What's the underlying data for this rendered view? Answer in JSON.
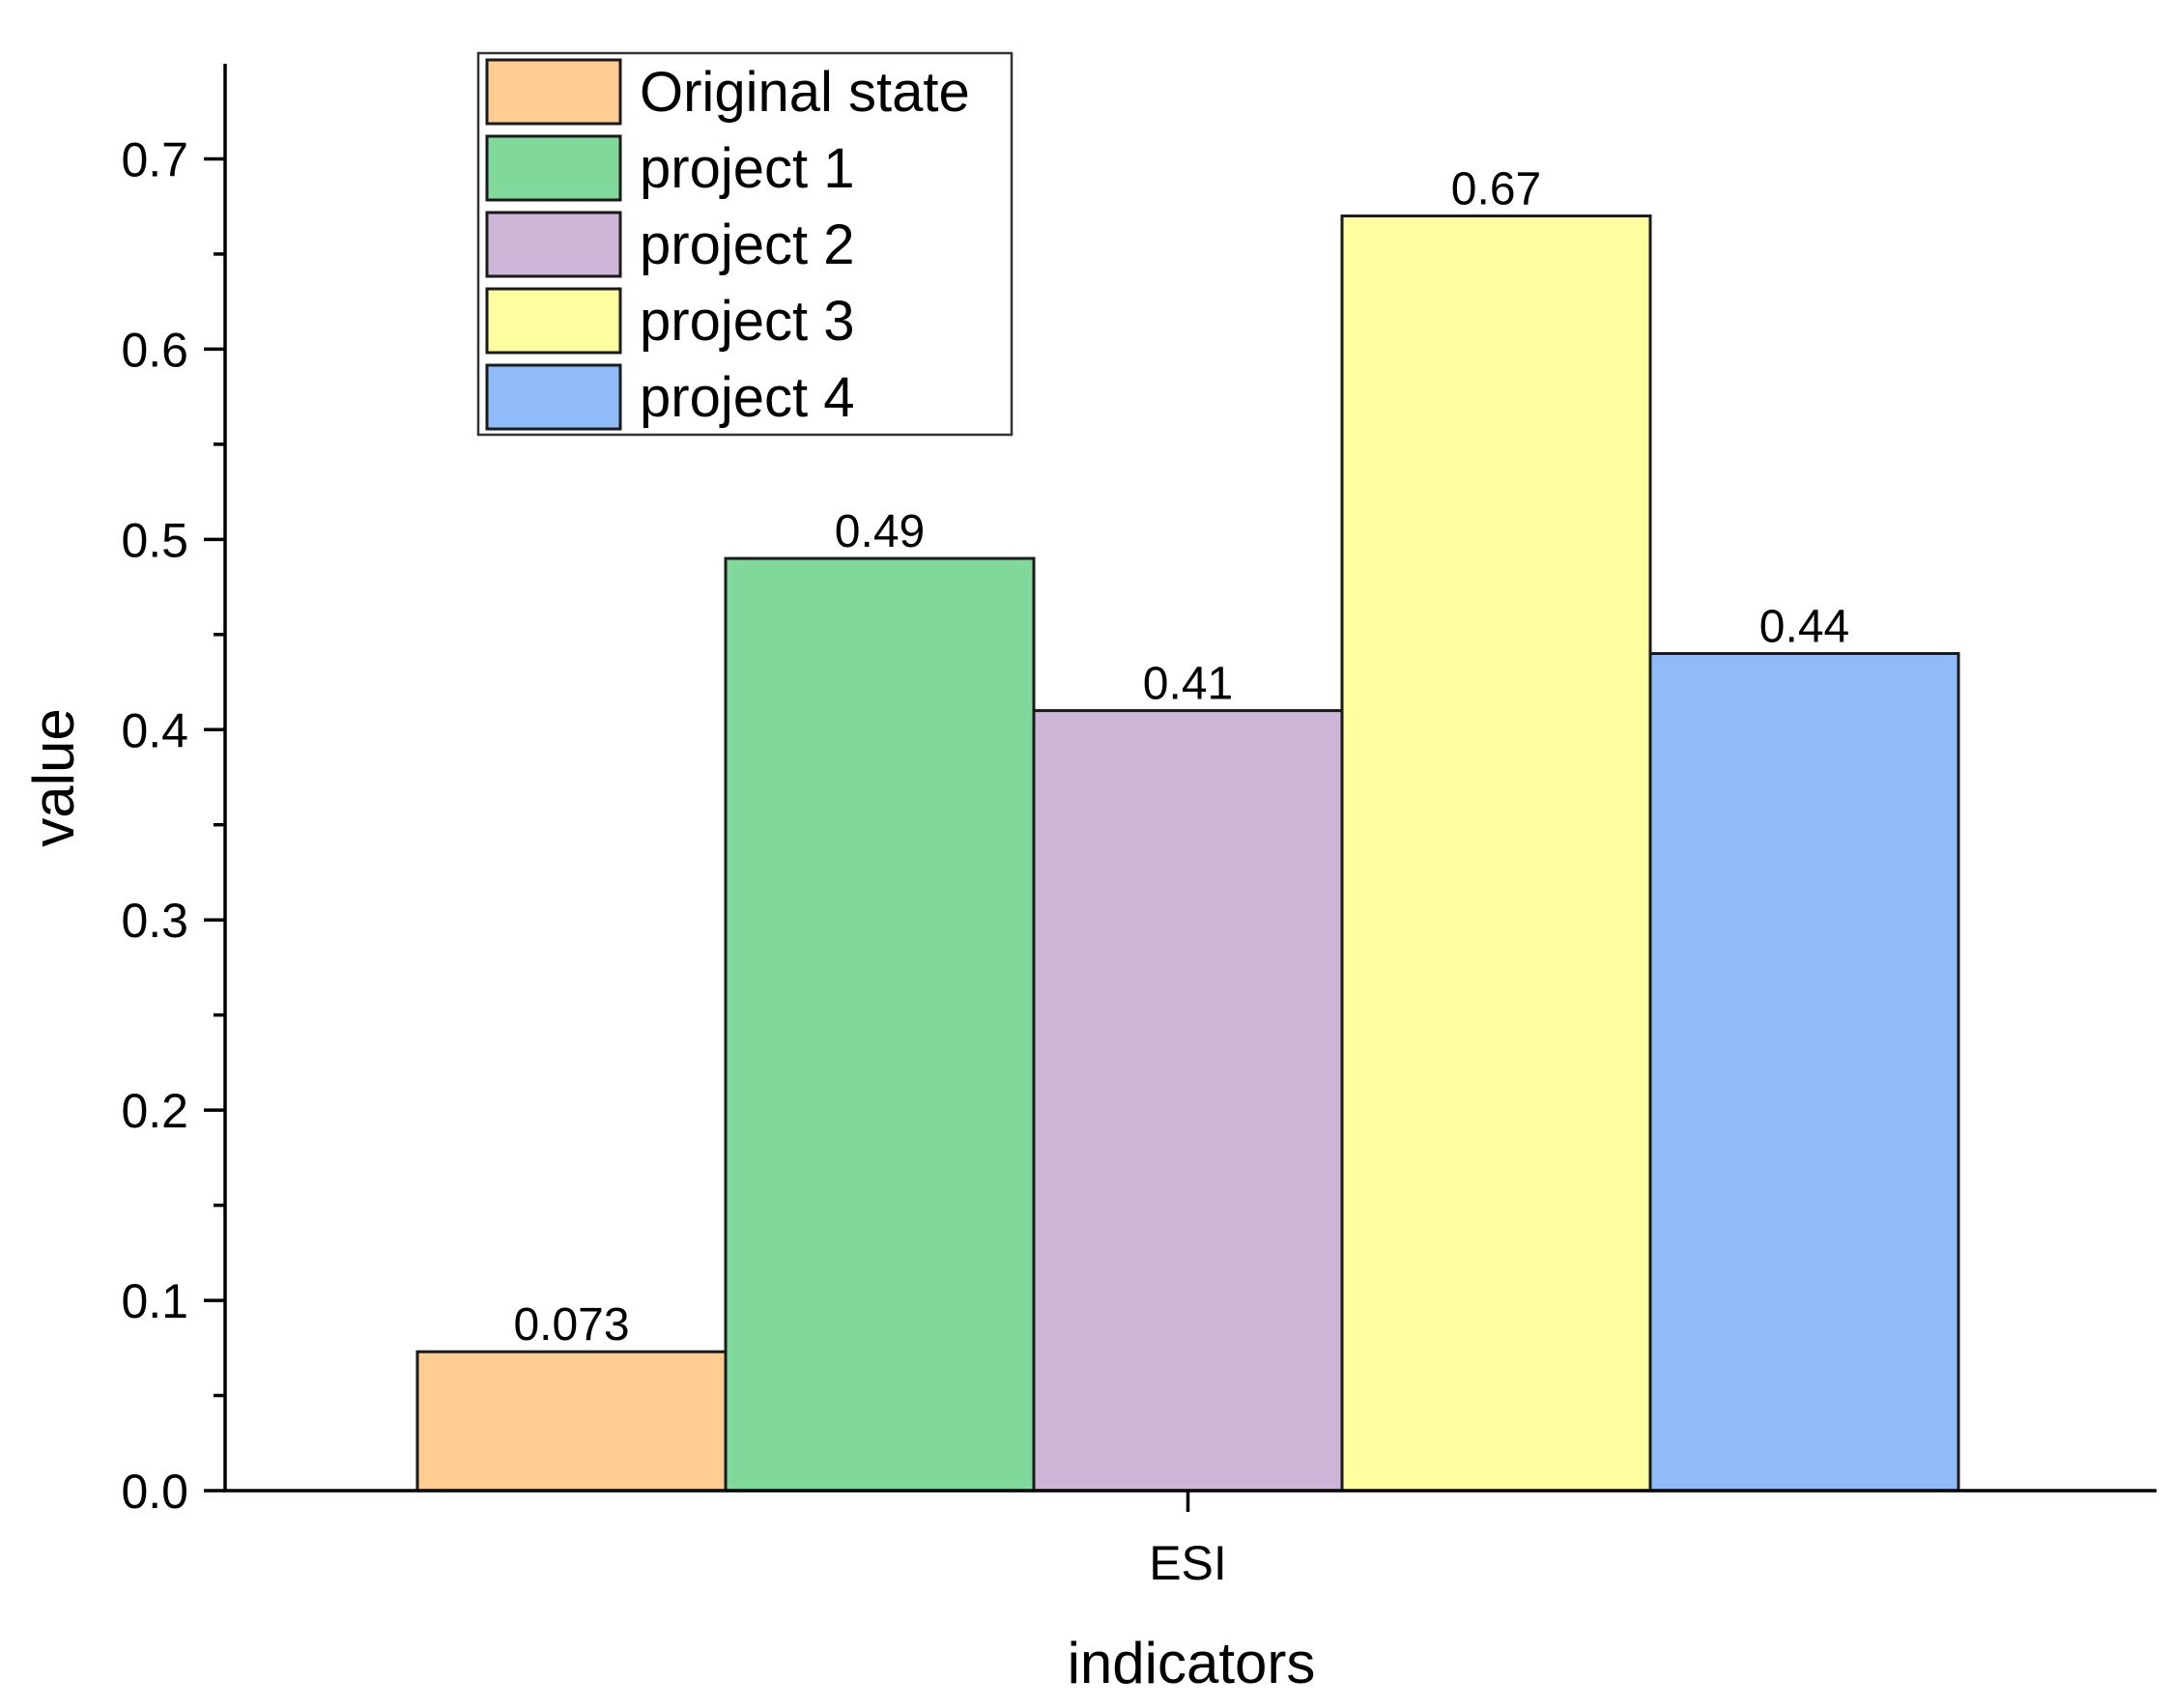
{
  "chart_data": {
    "type": "bar",
    "title": "",
    "xlabel": "indicators",
    "ylabel": "value",
    "categories": [
      "ESI"
    ],
    "ylim": [
      0,
      0.75
    ],
    "yticks": [
      "0.0",
      "0.1",
      "0.2",
      "0.3",
      "0.4",
      "0.5",
      "0.6",
      "0.7"
    ],
    "grid": false,
    "legend_position": "top-left",
    "series": [
      {
        "name": "Original state",
        "values": [
          0.073
        ],
        "label": "0.073",
        "color": "#FFCC91"
      },
      {
        "name": "project 1",
        "values": [
          0.49
        ],
        "label": "0.49",
        "color": "#80D89A"
      },
      {
        "name": "project 2",
        "values": [
          0.41
        ],
        "label": "0.41",
        "color": "#CDB5D8"
      },
      {
        "name": "project 3",
        "values": [
          0.67
        ],
        "label": "0.67",
        "color": "#FFFFA0"
      },
      {
        "name": "project 4",
        "values": [
          0.44
        ],
        "label": "0.44",
        "color": "#8FBCF8"
      }
    ]
  }
}
